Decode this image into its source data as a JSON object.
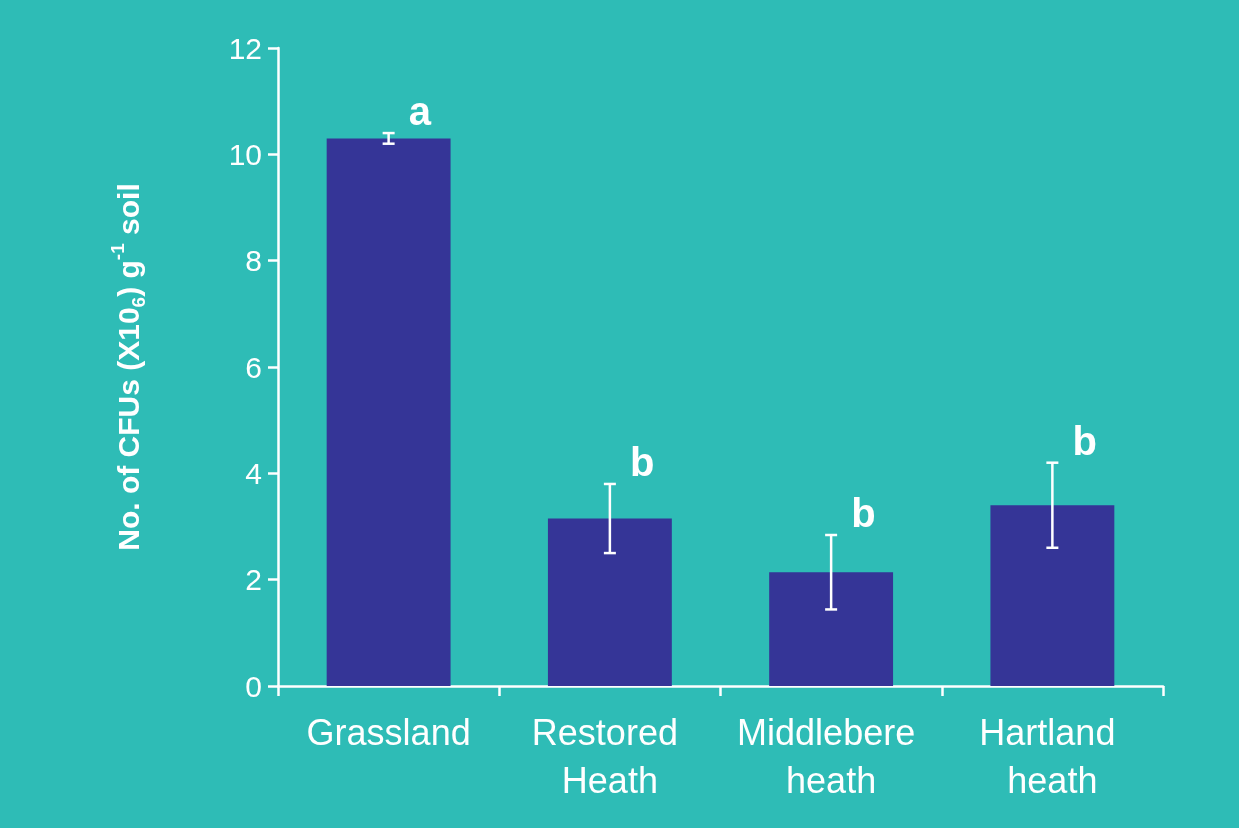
{
  "chart_data": {
    "type": "bar",
    "ylabel": "No. of CFUs (X10$_{6}$) g$^{-1}$ soil",
    "categories": [
      "Grassland",
      "Restored Heath",
      "Middlebere heath",
      "Hartland heath"
    ],
    "values": [
      10.3,
      3.15,
      2.14,
      3.4
    ],
    "errors": [
      0.1,
      0.65,
      0.7,
      0.8
    ],
    "color": "#353597",
    "ylim": [
      0,
      12
    ],
    "yticks": [
      0,
      2,
      4,
      6,
      8,
      10,
      12
    ],
    "grid": false,
    "annotations": [
      "a",
      "b",
      "b",
      "b"
    ]
  }
}
